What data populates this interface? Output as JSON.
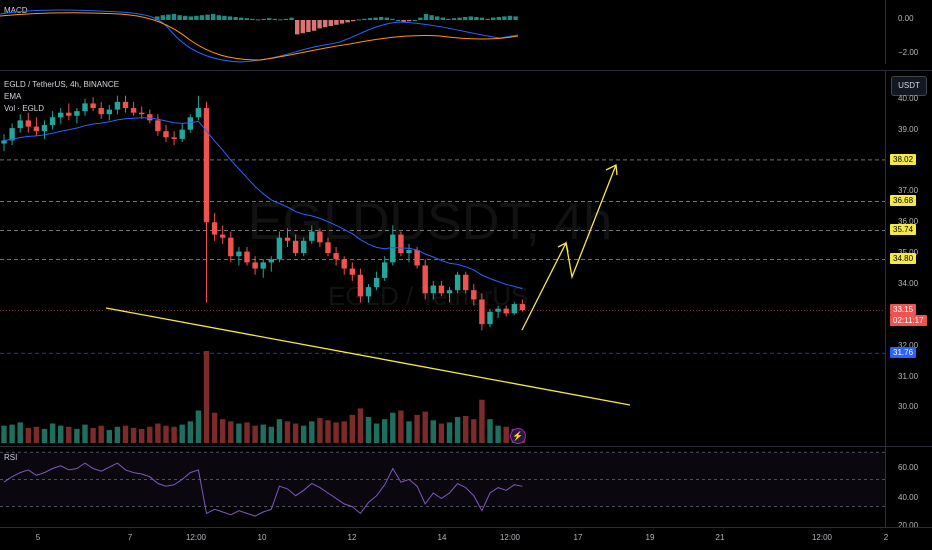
{
  "macd": {
    "title": "MACD",
    "axis": [
      "0.00",
      "−2.00"
    ]
  },
  "main": {
    "symbol_legend": "EGLD / TetherUS, 4h, BINANCE",
    "ema_label": "EMA",
    "vol_label": "Vol · EGLD",
    "watermark_symbol": "EGLDUSDT, 4h",
    "watermark_name": "EGLD / TetherUS",
    "currency_button": "USDT",
    "price_axis": [
      "40.00",
      "39.00",
      "37.00",
      "36.00",
      "35.00",
      "34.00",
      "32.00",
      "31.00",
      "30.00"
    ],
    "level_tags": [
      "38.02",
      "36.68",
      "35.74",
      "34.80"
    ],
    "support_tag": "31.76",
    "current_price": "33.15",
    "countdown": "02:11:17"
  },
  "rsi": {
    "title": "RSI",
    "axis": [
      "60.00",
      "40.00",
      "20.00"
    ]
  },
  "time_axis": [
    "5",
    "7",
    "12:00",
    "10",
    "12",
    "14",
    "12:00",
    "17",
    "19",
    "21",
    "12:00",
    "2"
  ],
  "colors": {
    "up": "#26a69a",
    "down": "#ef5350",
    "ema": "#2962ff",
    "drawing": "#f5e946",
    "tag_yellow": "#f5e946",
    "tag_blue": "#2962ff",
    "rsi_line": "#7e57c2"
  },
  "chart_data": {
    "type": "candlestick",
    "ylim": [
      29.7,
      40.3
    ],
    "candles": [
      [
        38.55,
        38.85,
        38.3,
        38.65
      ],
      [
        38.65,
        39.2,
        38.5,
        39.05
      ],
      [
        39.05,
        39.5,
        38.9,
        39.3
      ],
      [
        39.3,
        39.55,
        38.9,
        39.1
      ],
      [
        39.1,
        39.4,
        38.8,
        38.95
      ],
      [
        38.95,
        39.3,
        38.7,
        39.15
      ],
      [
        39.15,
        39.6,
        39.0,
        39.4
      ],
      [
        39.4,
        39.7,
        39.2,
        39.55
      ],
      [
        39.55,
        39.85,
        39.3,
        39.45
      ],
      [
        39.45,
        39.7,
        39.2,
        39.6
      ],
      [
        39.6,
        40.0,
        39.45,
        39.85
      ],
      [
        39.85,
        40.05,
        39.6,
        39.7
      ],
      [
        39.7,
        39.9,
        39.35,
        39.5
      ],
      [
        39.5,
        39.8,
        39.3,
        39.65
      ],
      [
        39.65,
        40.1,
        39.5,
        39.9
      ],
      [
        39.9,
        40.1,
        39.55,
        39.7
      ],
      [
        39.7,
        39.9,
        39.45,
        39.55
      ],
      [
        39.55,
        39.75,
        39.35,
        39.5
      ],
      [
        39.5,
        39.65,
        39.2,
        39.3
      ],
      [
        39.3,
        39.5,
        38.8,
        38.95
      ],
      [
        38.95,
        39.15,
        38.6,
        38.75
      ],
      [
        38.75,
        38.95,
        38.5,
        38.7
      ],
      [
        38.7,
        39.2,
        38.6,
        39.0
      ],
      [
        39.0,
        39.5,
        38.9,
        39.4
      ],
      [
        39.4,
        40.1,
        39.3,
        39.7
      ],
      [
        39.7,
        39.9,
        33.4,
        36.0
      ],
      [
        36.0,
        36.3,
        35.4,
        35.6
      ],
      [
        35.6,
        35.9,
        35.3,
        35.5
      ],
      [
        35.5,
        35.7,
        34.7,
        34.9
      ],
      [
        34.9,
        35.2,
        34.6,
        35.05
      ],
      [
        35.05,
        35.2,
        34.6,
        34.7
      ],
      [
        34.7,
        34.9,
        34.3,
        34.5
      ],
      [
        34.5,
        34.8,
        34.2,
        34.7
      ],
      [
        34.7,
        34.9,
        34.4,
        34.8
      ],
      [
        34.8,
        35.7,
        34.7,
        35.5
      ],
      [
        35.5,
        35.8,
        35.2,
        35.4
      ],
      [
        35.4,
        35.6,
        34.9,
        35.0
      ],
      [
        35.0,
        35.5,
        34.9,
        35.4
      ],
      [
        35.4,
        35.9,
        35.3,
        35.7
      ],
      [
        35.7,
        35.8,
        35.2,
        35.35
      ],
      [
        35.35,
        35.5,
        34.9,
        35.0
      ],
      [
        35.0,
        35.2,
        34.6,
        34.8
      ],
      [
        34.8,
        34.9,
        34.3,
        34.5
      ],
      [
        34.5,
        34.7,
        34.1,
        34.3
      ],
      [
        34.3,
        34.5,
        33.4,
        33.6
      ],
      [
        33.6,
        34.0,
        33.4,
        33.9
      ],
      [
        33.9,
        34.4,
        33.8,
        34.2
      ],
      [
        34.2,
        34.9,
        34.1,
        34.7
      ],
      [
        34.7,
        35.9,
        34.6,
        35.6
      ],
      [
        35.6,
        35.7,
        34.9,
        35.0
      ],
      [
        35.0,
        35.3,
        34.7,
        35.1
      ],
      [
        35.1,
        35.2,
        34.5,
        34.6
      ],
      [
        34.6,
        34.8,
        33.5,
        33.7
      ],
      [
        33.7,
        34.1,
        33.5,
        33.95
      ],
      [
        33.95,
        34.1,
        33.6,
        33.7
      ],
      [
        33.7,
        33.9,
        33.4,
        33.8
      ],
      [
        33.8,
        34.4,
        33.7,
        34.3
      ],
      [
        34.3,
        34.4,
        33.7,
        33.8
      ],
      [
        33.8,
        34.0,
        33.3,
        33.5
      ],
      [
        33.5,
        33.7,
        32.5,
        32.7
      ],
      [
        32.7,
        33.2,
        32.6,
        33.1
      ],
      [
        33.1,
        33.3,
        32.9,
        33.2
      ],
      [
        33.2,
        33.3,
        32.95,
        33.05
      ],
      [
        33.05,
        33.4,
        33.0,
        33.35
      ],
      [
        33.35,
        33.5,
        33.1,
        33.15
      ]
    ],
    "volume": [
      1.6,
      1.7,
      1.9,
      1.4,
      1.5,
      1.3,
      1.8,
      1.6,
      1.5,
      1.3,
      1.7,
      1.4,
      1.6,
      1.2,
      1.5,
      1.6,
      1.4,
      1.3,
      1.5,
      1.8,
      1.6,
      1.5,
      1.7,
      2.0,
      3.0,
      8.5,
      2.8,
      2.2,
      2.0,
      1.8,
      1.9,
      1.6,
      1.7,
      1.5,
      2.2,
      2.0,
      1.8,
      1.6,
      2.0,
      2.3,
      2.1,
      1.9,
      2.0,
      2.6,
      3.2,
      2.4,
      1.8,
      2.2,
      2.8,
      3.0,
      2.0,
      2.6,
      2.9,
      2.1,
      1.8,
      1.9,
      2.4,
      2.5,
      2.2,
      4.0,
      2.2,
      1.6,
      1.5,
      1.3,
      1.1
    ],
    "volume_up_down": [
      1,
      1,
      1,
      0,
      0,
      1,
      1,
      1,
      0,
      1,
      1,
      0,
      0,
      1,
      1,
      0,
      0,
      0,
      0,
      0,
      0,
      0,
      1,
      1,
      1,
      0,
      0,
      0,
      0,
      1,
      0,
      0,
      1,
      1,
      1,
      0,
      0,
      1,
      1,
      0,
      0,
      0,
      0,
      0,
      0,
      1,
      1,
      1,
      1,
      0,
      1,
      0,
      0,
      1,
      0,
      1,
      1,
      0,
      0,
      0,
      1,
      1,
      0,
      1,
      0
    ],
    "macd_histogram": [
      0.3,
      0.4,
      0.45,
      0.5,
      0.4,
      0.35,
      0.3,
      0.35,
      0.4,
      0.45,
      0.5,
      0.4,
      0.35,
      0.3,
      0.25,
      0.2,
      0.15,
      0.1,
      0.05,
      0.1,
      0.15,
      0.1,
      0.05,
      0.1,
      0.2,
      -1.2,
      -1.1,
      -1.0,
      -0.9,
      -0.7,
      -0.6,
      -0.5,
      -0.4,
      -0.3,
      -0.2,
      -0.1,
      0.05,
      0.1,
      0.15,
      0.2,
      0.25,
      0.2,
      0.1,
      0.0,
      -0.15,
      -0.1,
      0.0,
      0.2,
      0.5,
      0.4,
      0.3,
      0.2,
      0.1,
      0.15,
      0.2,
      0.25,
      0.3,
      0.25,
      0.2,
      0.1,
      0.2,
      0.25,
      0.3,
      0.35,
      0.3
    ],
    "rsi": [
      48,
      52,
      55,
      57,
      53,
      55,
      58,
      60,
      57,
      58,
      62,
      58,
      56,
      59,
      62,
      57,
      55,
      54,
      52,
      47,
      45,
      46,
      50,
      55,
      57,
      25,
      28,
      26,
      24,
      27,
      25,
      23,
      26,
      28,
      45,
      43,
      38,
      42,
      47,
      44,
      40,
      36,
      32,
      30,
      25,
      33,
      38,
      46,
      58,
      48,
      50,
      45,
      32,
      40,
      36,
      40,
      47,
      44,
      38,
      27,
      40,
      44,
      42,
      46,
      45
    ],
    "horizontal_levels": [
      38.02,
      36.68,
      35.74,
      34.8
    ],
    "support_level": 31.76,
    "current_price": 33.15
  }
}
